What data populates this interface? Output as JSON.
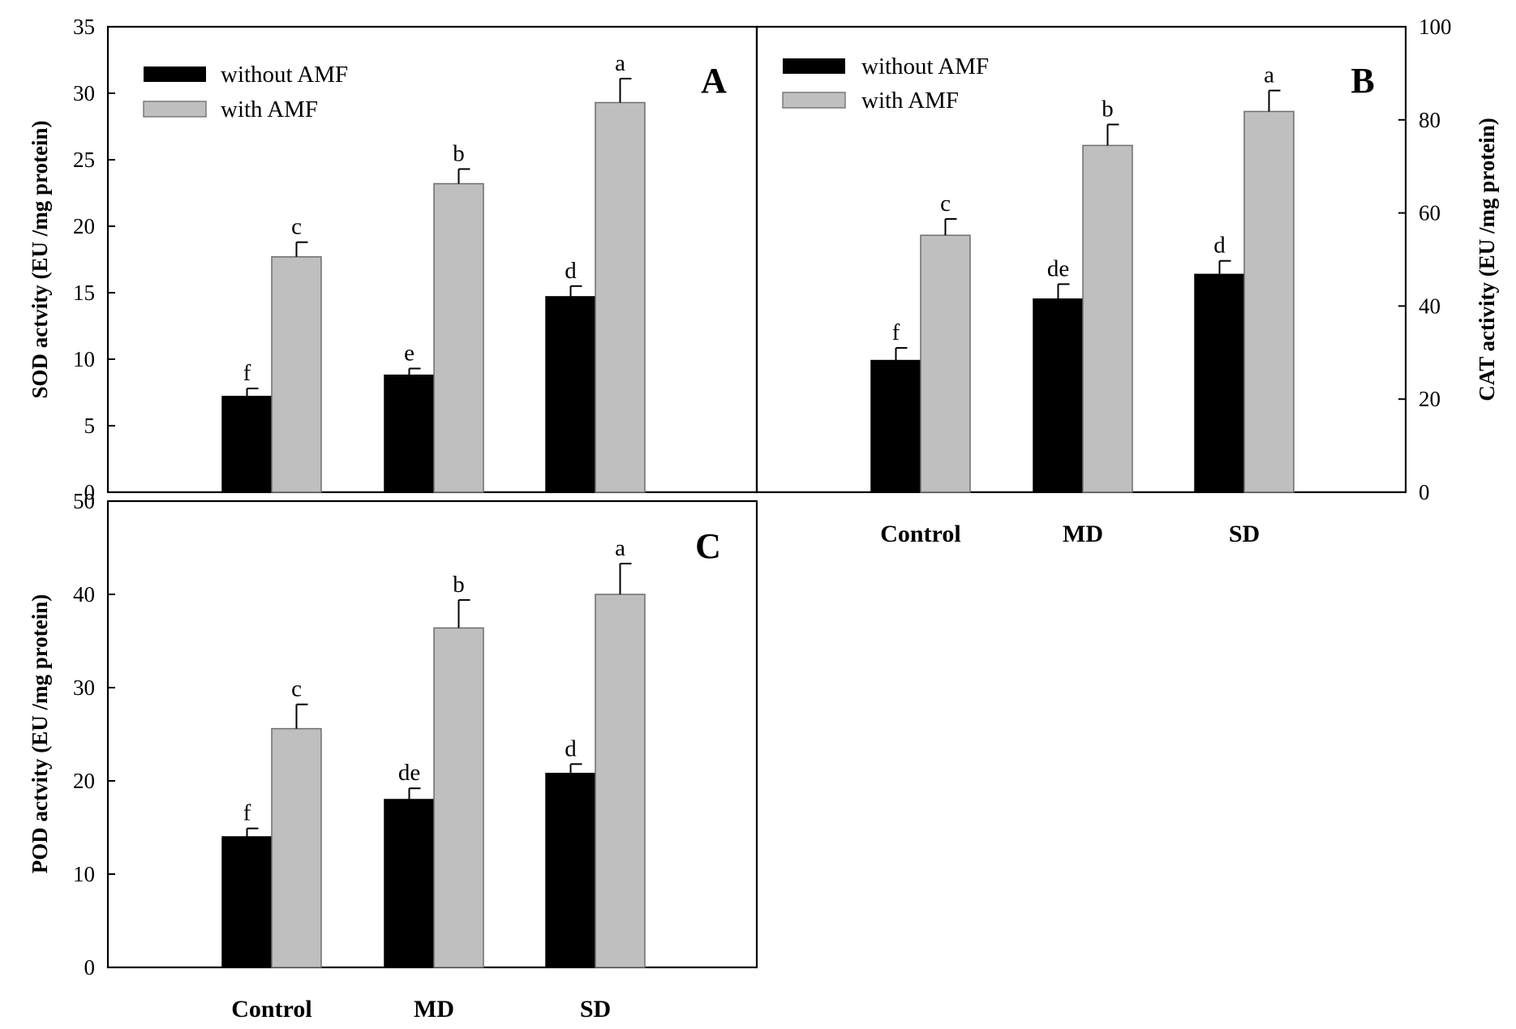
{
  "colors": {
    "without_amf": "#000000",
    "with_amf": "#bfbfbf"
  },
  "legend": {
    "without_label": "without AMF",
    "with_label": "with AMF"
  },
  "chart_data": [
    {
      "id": "A",
      "type": "bar",
      "panel_label": "A",
      "categories": [
        "Control",
        "MD",
        "SD"
      ],
      "show_category_labels": false,
      "ylabel": "SOD actvity (EU /mg protein)",
      "ylim": [
        0,
        35
      ],
      "yticks": [
        0,
        5,
        10,
        15,
        20,
        25,
        30,
        35
      ],
      "y_axis_side": "left",
      "legend": true,
      "series": [
        {
          "name": "without AMF",
          "values": [
            7.2,
            8.8,
            14.7
          ],
          "errors": [
            0.6,
            0.5,
            0.8
          ],
          "letters": [
            "f",
            "e",
            "d"
          ]
        },
        {
          "name": "with AMF",
          "values": [
            17.7,
            23.2,
            29.3
          ],
          "errors": [
            1.1,
            1.1,
            1.8
          ],
          "letters": [
            "c",
            "b",
            "a"
          ]
        }
      ]
    },
    {
      "id": "B",
      "type": "bar",
      "panel_label": "B",
      "categories": [
        "Control",
        "MD",
        "SD"
      ],
      "show_category_labels": true,
      "ylabel": "CAT activity (EU /mg protein)",
      "ylim": [
        0,
        100
      ],
      "yticks": [
        0,
        20,
        40,
        60,
        80,
        100
      ],
      "y_axis_side": "right",
      "legend": true,
      "series": [
        {
          "name": "without AMF",
          "values": [
            28.3,
            41.5,
            46.8
          ],
          "errors": [
            2.7,
            3.2,
            2.9
          ],
          "letters": [
            "f",
            "de",
            "d"
          ]
        },
        {
          "name": "with AMF",
          "values": [
            55.2,
            74.5,
            81.8
          ],
          "errors": [
            3.5,
            4.5,
            4.5
          ],
          "letters": [
            "c",
            "b",
            "a"
          ]
        }
      ]
    },
    {
      "id": "C",
      "type": "bar",
      "panel_label": "C",
      "categories": [
        "Control",
        "MD",
        "SD"
      ],
      "show_category_labels": true,
      "ylabel": "POD actvity (EU /mg protein)",
      "ylim": [
        0,
        50
      ],
      "yticks": [
        0,
        10,
        20,
        30,
        40,
        50
      ],
      "y_axis_side": "left",
      "legend": false,
      "series": [
        {
          "name": "without AMF",
          "values": [
            14.0,
            18.0,
            20.8
          ],
          "errors": [
            0.9,
            1.2,
            1.0
          ],
          "letters": [
            "f",
            "de",
            "d"
          ]
        },
        {
          "name": "with AMF",
          "values": [
            25.6,
            36.4,
            40.0
          ],
          "errors": [
            2.6,
            3.0,
            3.3
          ],
          "letters": [
            "c",
            "b",
            "a"
          ]
        }
      ]
    }
  ]
}
